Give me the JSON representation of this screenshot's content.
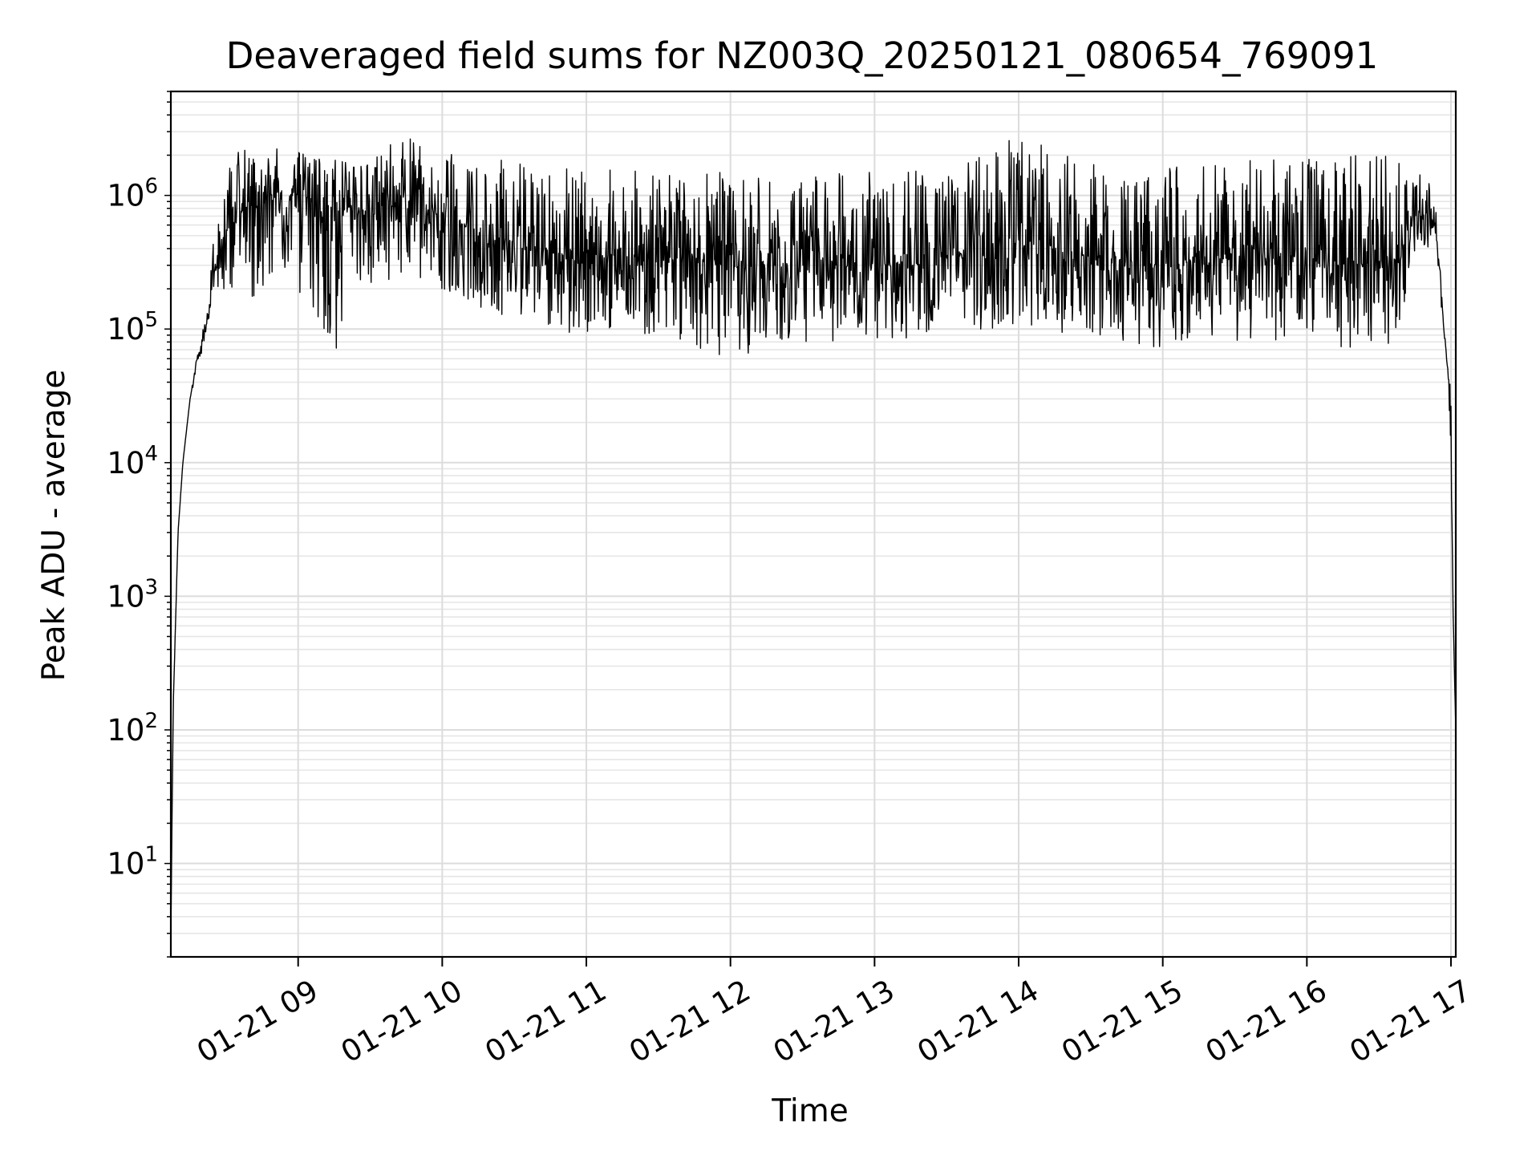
{
  "chart_data": {
    "type": "line",
    "title": "Deaveraged field sums for NZ003Q_20250121_080654_769091",
    "xlabel": "Time",
    "ylabel": "Peak ADU - average",
    "yscale": "log",
    "xlim": [
      "2025-01-21 08:07",
      "2025-01-21 17:02"
    ],
    "ylim": [
      2,
      6000000
    ],
    "grid": true,
    "x_ticks": [
      {
        "label": "01-21 09",
        "t": "2025-01-21 09:00"
      },
      {
        "label": "01-21 10",
        "t": "2025-01-21 10:00"
      },
      {
        "label": "01-21 11",
        "t": "2025-01-21 11:00"
      },
      {
        "label": "01-21 12",
        "t": "2025-01-21 12:00"
      },
      {
        "label": "01-21 13",
        "t": "2025-01-21 13:00"
      },
      {
        "label": "01-21 14",
        "t": "2025-01-21 14:00"
      },
      {
        "label": "01-21 15",
        "t": "2025-01-21 15:00"
      },
      {
        "label": "01-21 16",
        "t": "2025-01-21 16:00"
      },
      {
        "label": "01-21 17",
        "t": "2025-01-21 17:00"
      }
    ],
    "y_ticks": [
      {
        "base": "10",
        "exp": "1",
        "value": 10
      },
      {
        "base": "10",
        "exp": "2",
        "value": 100
      },
      {
        "base": "10",
        "exp": "3",
        "value": 1000
      },
      {
        "base": "10",
        "exp": "4",
        "value": 10000
      },
      {
        "base": "10",
        "exp": "5",
        "value": 100000
      },
      {
        "base": "10",
        "exp": "6",
        "value": 1000000
      }
    ],
    "series": [
      {
        "color": "#000000",
        "x": [
          "2025-01-21 08:07",
          "2025-01-21 08:08",
          "2025-01-21 08:10",
          "2025-01-21 08:12",
          "2025-01-21 08:15",
          "2025-01-21 08:18",
          "2025-01-21 08:21",
          "2025-01-21 08:24",
          "2025-01-21 08:27",
          "2025-01-21 08:30",
          "2025-01-21 08:34",
          "2025-01-21 08:38",
          "2025-01-21 08:45",
          "2025-01-21 09:00",
          "2025-01-21 09:15",
          "2025-01-21 09:30",
          "2025-01-21 09:45",
          "2025-01-21 10:00",
          "2025-01-21 10:30",
          "2025-01-21 11:00",
          "2025-01-21 11:30",
          "2025-01-21 12:00",
          "2025-01-21 12:30",
          "2025-01-21 13:00",
          "2025-01-21 13:30",
          "2025-01-21 14:00",
          "2025-01-21 14:30",
          "2025-01-21 15:00",
          "2025-01-21 15:30",
          "2025-01-21 16:00",
          "2025-01-21 16:30",
          "2025-01-21 16:40",
          "2025-01-21 16:45",
          "2025-01-21 16:50",
          "2025-01-21 16:54",
          "2025-01-21 16:57",
          "2025-01-21 16:59",
          "2025-01-21 17:00",
          "2025-01-21 17:01",
          "2025-01-21 17:02"
        ],
        "y": [
          3,
          150,
          3000,
          10000,
          30000,
          60000,
          90000,
          200000,
          400000,
          600000,
          700000,
          800000,
          900000,
          800000,
          900000,
          700000,
          900000,
          700000,
          400000,
          350000,
          350000,
          300000,
          300000,
          300000,
          350000,
          450000,
          350000,
          300000,
          350000,
          350000,
          300000,
          350000,
          750000,
          700000,
          500000,
          100000,
          40000,
          15000,
          600,
          100
        ],
        "upper_envelope": [
          3,
          150,
          3000,
          10000,
          30000,
          70000,
          120000,
          400000,
          800000,
          1500000,
          2000000,
          3300000,
          2500000,
          2200000,
          2000000,
          2000000,
          2800000,
          2200000,
          1800000,
          1600000,
          1500000,
          1500000,
          1400000,
          1600000,
          1500000,
          3000000,
          1800000,
          1600000,
          1800000,
          2100000,
          2100000,
          1800000,
          2200000,
          1500000,
          800000,
          100000,
          60000,
          30000,
          700,
          100
        ],
        "lower_envelope": [
          3,
          150,
          3000,
          10000,
          30000,
          50000,
          80000,
          150000,
          200000,
          150000,
          140000,
          150000,
          200000,
          180000,
          56000,
          200000,
          250000,
          200000,
          110000,
          90000,
          90000,
          60000,
          80000,
          80000,
          90000,
          100000,
          90000,
          70000,
          80000,
          80000,
          60000,
          110000,
          400000,
          400000,
          300000,
          60000,
          20000,
          8000,
          400,
          100
        ]
      }
    ]
  }
}
